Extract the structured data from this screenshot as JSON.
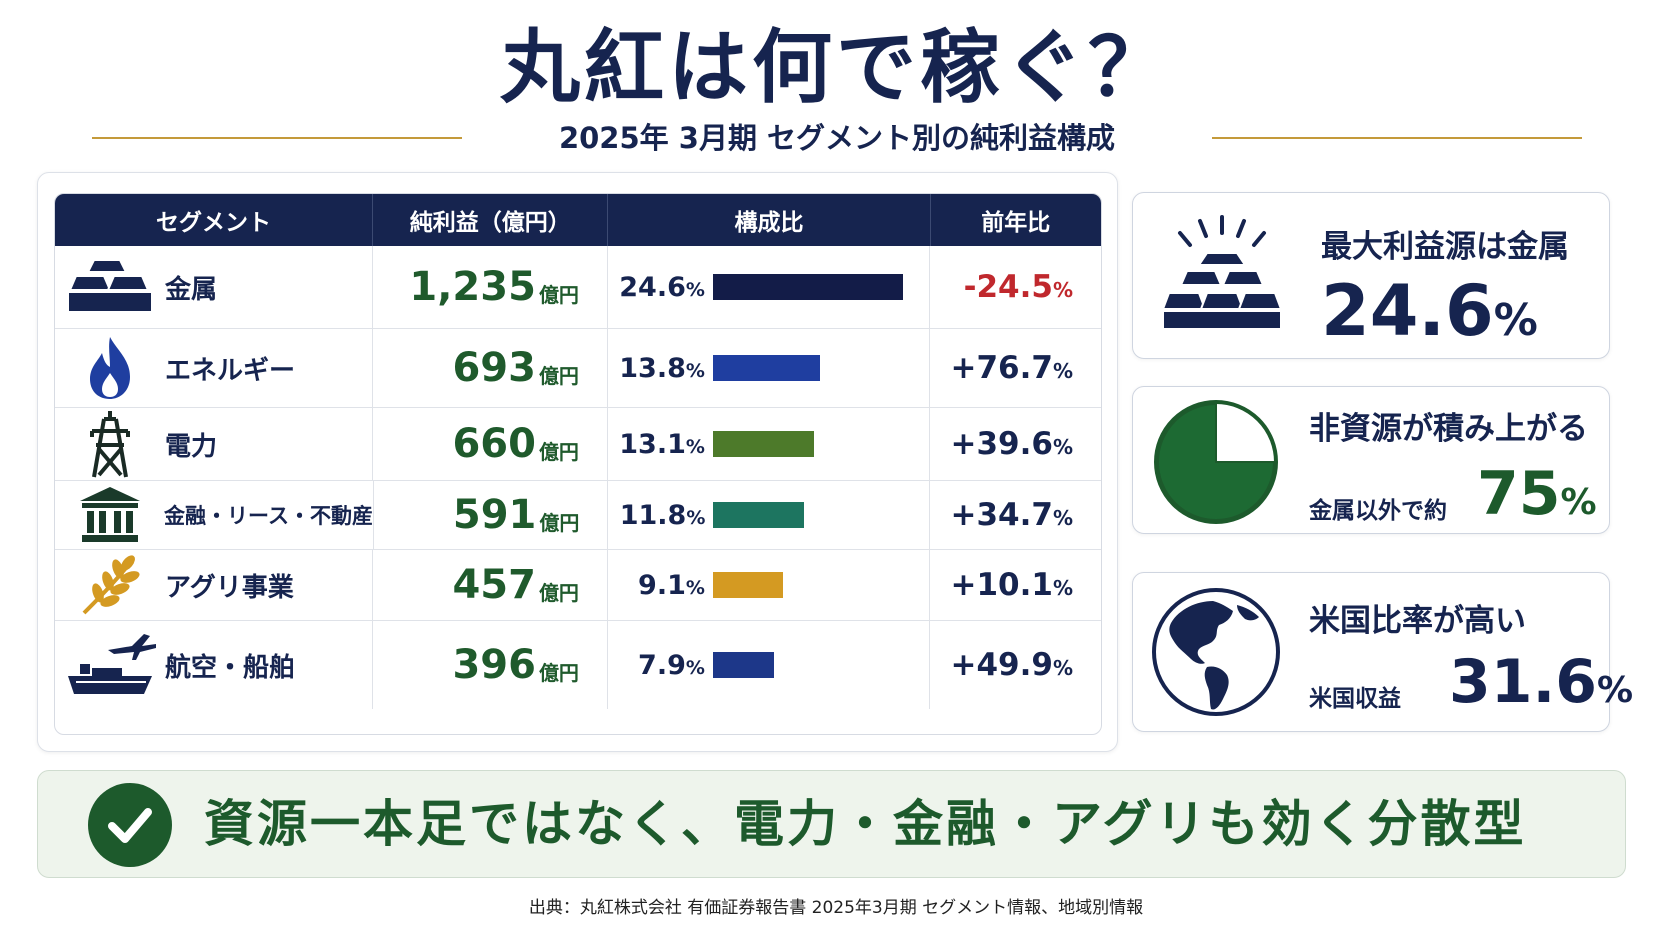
{
  "title": "丸紅は何で稼ぐ？",
  "subtitle": "2025年 3月期 セグメント別の純利益構成",
  "colors": {
    "navy": "#16244f",
    "green": "#1f5a2c",
    "negative_red": "#c0282d",
    "gold_line": "#c49a3a",
    "bottom_bg": "#eef4ec"
  },
  "table": {
    "headers": [
      "セグメント",
      "純利益（億円）",
      "構成比",
      "前年比"
    ],
    "unit": "億円",
    "pct_sign": "%"
  },
  "chart_data": {
    "type": "table",
    "columns": [
      "セグメント",
      "純利益（億円）",
      "構成比",
      "前年比"
    ],
    "rows": [
      {
        "segment": "金属",
        "icon": "gold-bars-icon",
        "profit_text": "1,235",
        "profit": 1235,
        "share_text": "24.6",
        "share": 24.6,
        "yoy_text": "-24.5",
        "yoy": -24.5,
        "bar_color": "#131c48"
      },
      {
        "segment": "エネルギー",
        "icon": "flame-icon",
        "profit_text": "693",
        "profit": 693,
        "share_text": "13.8",
        "share": 13.8,
        "yoy_text": "+76.7",
        "yoy": 76.7,
        "bar_color": "#1f3ea0"
      },
      {
        "segment": "電力",
        "icon": "power-tower-icon",
        "profit_text": "660",
        "profit": 660,
        "share_text": "13.1",
        "share": 13.1,
        "yoy_text": "+39.6",
        "yoy": 39.6,
        "bar_color": "#4d7a2a"
      },
      {
        "segment": "金融・リース・不動産",
        "icon": "bank-icon",
        "profit_text": "591",
        "profit": 591,
        "share_text": "11.8",
        "share": 11.8,
        "yoy_text": "+34.7",
        "yoy": 34.7,
        "bar_color": "#1d7560"
      },
      {
        "segment": "アグリ事業",
        "icon": "wheat-icon",
        "profit_text": "457",
        "profit": 457,
        "share_text": "9.1",
        "share": 9.1,
        "yoy_text": "+10.1",
        "yoy": 10.1,
        "bar_color": "#d49a22"
      },
      {
        "segment": "航空・船舶",
        "icon": "plane-ship-icon",
        "profit_text": "396",
        "profit": 396,
        "share_text": "7.9",
        "share": 7.9,
        "yoy_text": "+49.9",
        "yoy": 49.9,
        "bar_color": "#1d3789"
      }
    ],
    "share_max": 24.6
  },
  "kpis": {
    "metal": {
      "title": "最大利益源は金属",
      "value": "24.6",
      "pct": "%"
    },
    "non_resource": {
      "title": "非資源が積み上がる",
      "label": "金属以外で約",
      "value": "75",
      "pct": "%",
      "pie_fraction": 0.75
    },
    "us": {
      "title": "米国比率が高い",
      "label": "米国収益",
      "value": "31.6",
      "pct": "%"
    }
  },
  "bottom_message": "資源一本足ではなく、電力・金融・アグリも効く分散型",
  "source": "出典：丸紅株式会社 有価証券報告書 2025年3月期 セグメント情報、地域別情報"
}
